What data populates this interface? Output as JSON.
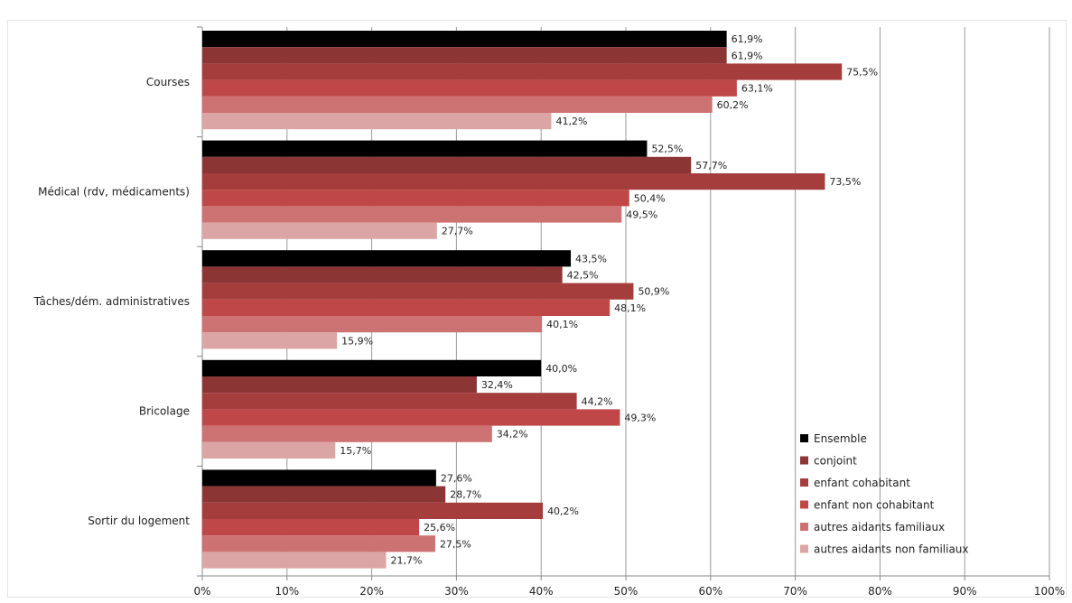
{
  "chart_data": {
    "type": "bar",
    "orientation": "horizontal",
    "categories": [
      "Courses",
      "Médical (rdv, médicaments)",
      "Tâches/dém. administratives",
      "Bricolage",
      "Sortir du logement"
    ],
    "series": [
      {
        "name": "Ensemble",
        "color": "#000000",
        "values": [
          61.9,
          52.5,
          43.5,
          40.0,
          27.6
        ],
        "labels": [
          "61,9%",
          "52,5%",
          "43,5%",
          "40,0%",
          "27,6%"
        ]
      },
      {
        "name": "conjoint",
        "color": "#8b3535",
        "values": [
          61.9,
          57.7,
          42.5,
          32.4,
          28.7
        ],
        "labels": [
          "61,9%",
          "57,7%",
          "42,5%",
          "32,4%",
          "28,7%"
        ]
      },
      {
        "name": "enfant cohabitant",
        "color": "#a53d3d",
        "values": [
          75.5,
          73.5,
          50.9,
          44.2,
          40.2
        ],
        "labels": [
          "75,5%",
          "73,5%",
          "50,9%",
          "44,2%",
          "40,2%"
        ]
      },
      {
        "name": "enfant non cohabitant",
        "color": "#c04747",
        "values": [
          63.1,
          50.4,
          48.1,
          49.3,
          25.6
        ],
        "labels": [
          "63,1%",
          "50,4%",
          "48,1%",
          "49,3%",
          "25,6%"
        ]
      },
      {
        "name": "autres aidants familiaux",
        "color": "#cd7272",
        "values": [
          60.2,
          49.5,
          40.1,
          34.2,
          27.5
        ],
        "labels": [
          "60,2%",
          "49,5%",
          "40,1%",
          "34,2%",
          "27,5%"
        ]
      },
      {
        "name": "autres aidants non familiaux",
        "color": "#dca5a5",
        "values": [
          41.2,
          27.7,
          15.9,
          15.7,
          21.7
        ],
        "labels": [
          "41,2%",
          "27,7%",
          "15,9%",
          "15,7%",
          "21,7%"
        ]
      }
    ],
    "xlim": [
      0,
      100
    ],
    "xticks": [
      "0%",
      "10%",
      "20%",
      "30%",
      "40%",
      "50%",
      "60%",
      "70%",
      "80%",
      "90%",
      "100%"
    ],
    "grid": true,
    "legend_position": "bottom-right"
  }
}
